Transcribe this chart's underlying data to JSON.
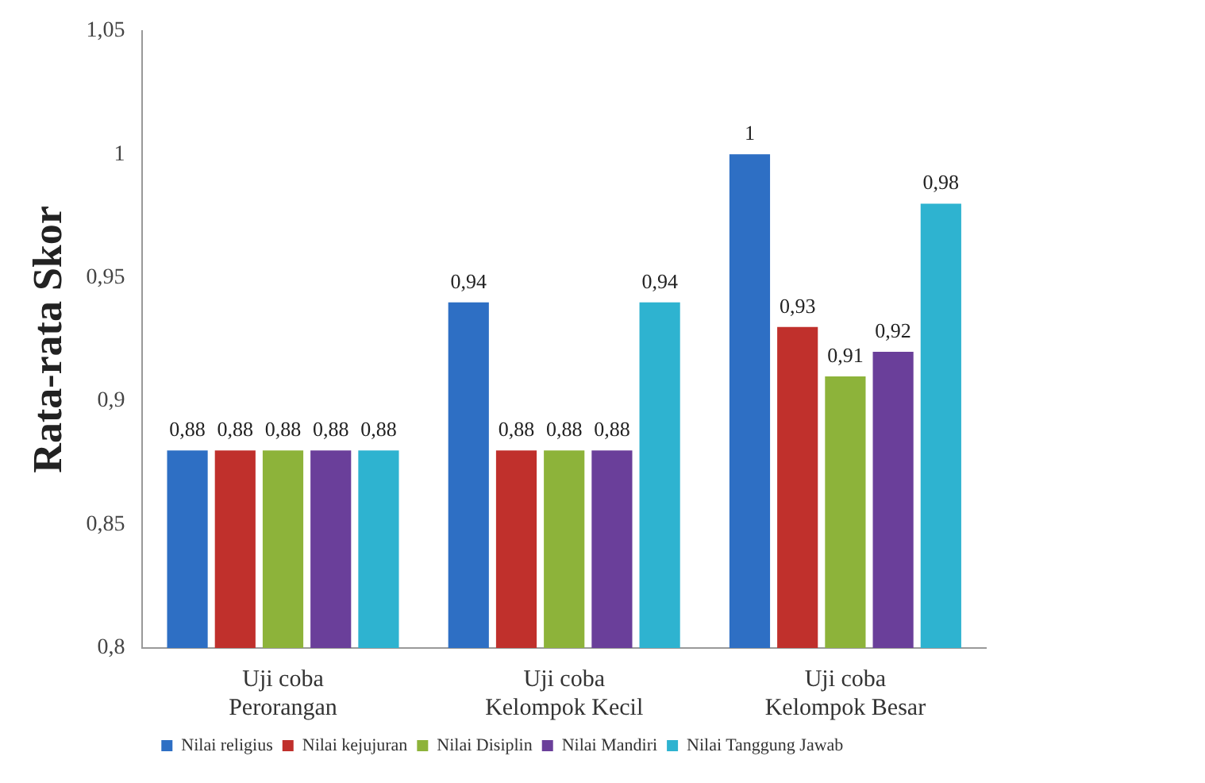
{
  "chart_data": {
    "type": "bar",
    "ylabel": "Rata-rata Skor",
    "categories": [
      "Uji coba Perorangan",
      "Uji coba Kelompok Kecil",
      "Uji coba Kelompok Besar"
    ],
    "series": [
      {
        "name": "Nilai religius",
        "color": "#2e6fc4",
        "values": [
          0.88,
          0.94,
          1
        ],
        "value_labels": [
          "0,88",
          "0,94",
          "1"
        ]
      },
      {
        "name": "Nilai kejujuran",
        "color": "#c0302c",
        "values": [
          0.88,
          0.88,
          0.93
        ],
        "value_labels": [
          "0,88",
          "0,88",
          "0,93"
        ]
      },
      {
        "name": "Nilai Disiplin",
        "color": "#8db33a",
        "values": [
          0.88,
          0.88,
          0.91
        ],
        "value_labels": [
          "0,88",
          "0,88",
          "0,91"
        ]
      },
      {
        "name": "Nilai Mandiri",
        "color": "#6a3f9a",
        "values": [
          0.88,
          0.88,
          0.92
        ],
        "value_labels": [
          "0,88",
          "0,88",
          "0,92"
        ]
      },
      {
        "name": "Nilai Tanggung Jawab",
        "color": "#2eb3d0",
        "values": [
          0.88,
          0.94,
          0.98
        ],
        "value_labels": [
          "0,88",
          "0,94",
          "0,98"
        ]
      }
    ],
    "ylim": [
      0.8,
      1.05
    ],
    "yticks": [
      {
        "value": 0.8,
        "label": "0,8"
      },
      {
        "value": 0.85,
        "label": "0,85"
      },
      {
        "value": 0.9,
        "label": "0,9"
      },
      {
        "value": 0.95,
        "label": "0,95"
      },
      {
        "value": 1,
        "label": "1"
      },
      {
        "value": 1.05,
        "label": "1,05"
      }
    ],
    "grid": false,
    "legend": "bottom"
  }
}
